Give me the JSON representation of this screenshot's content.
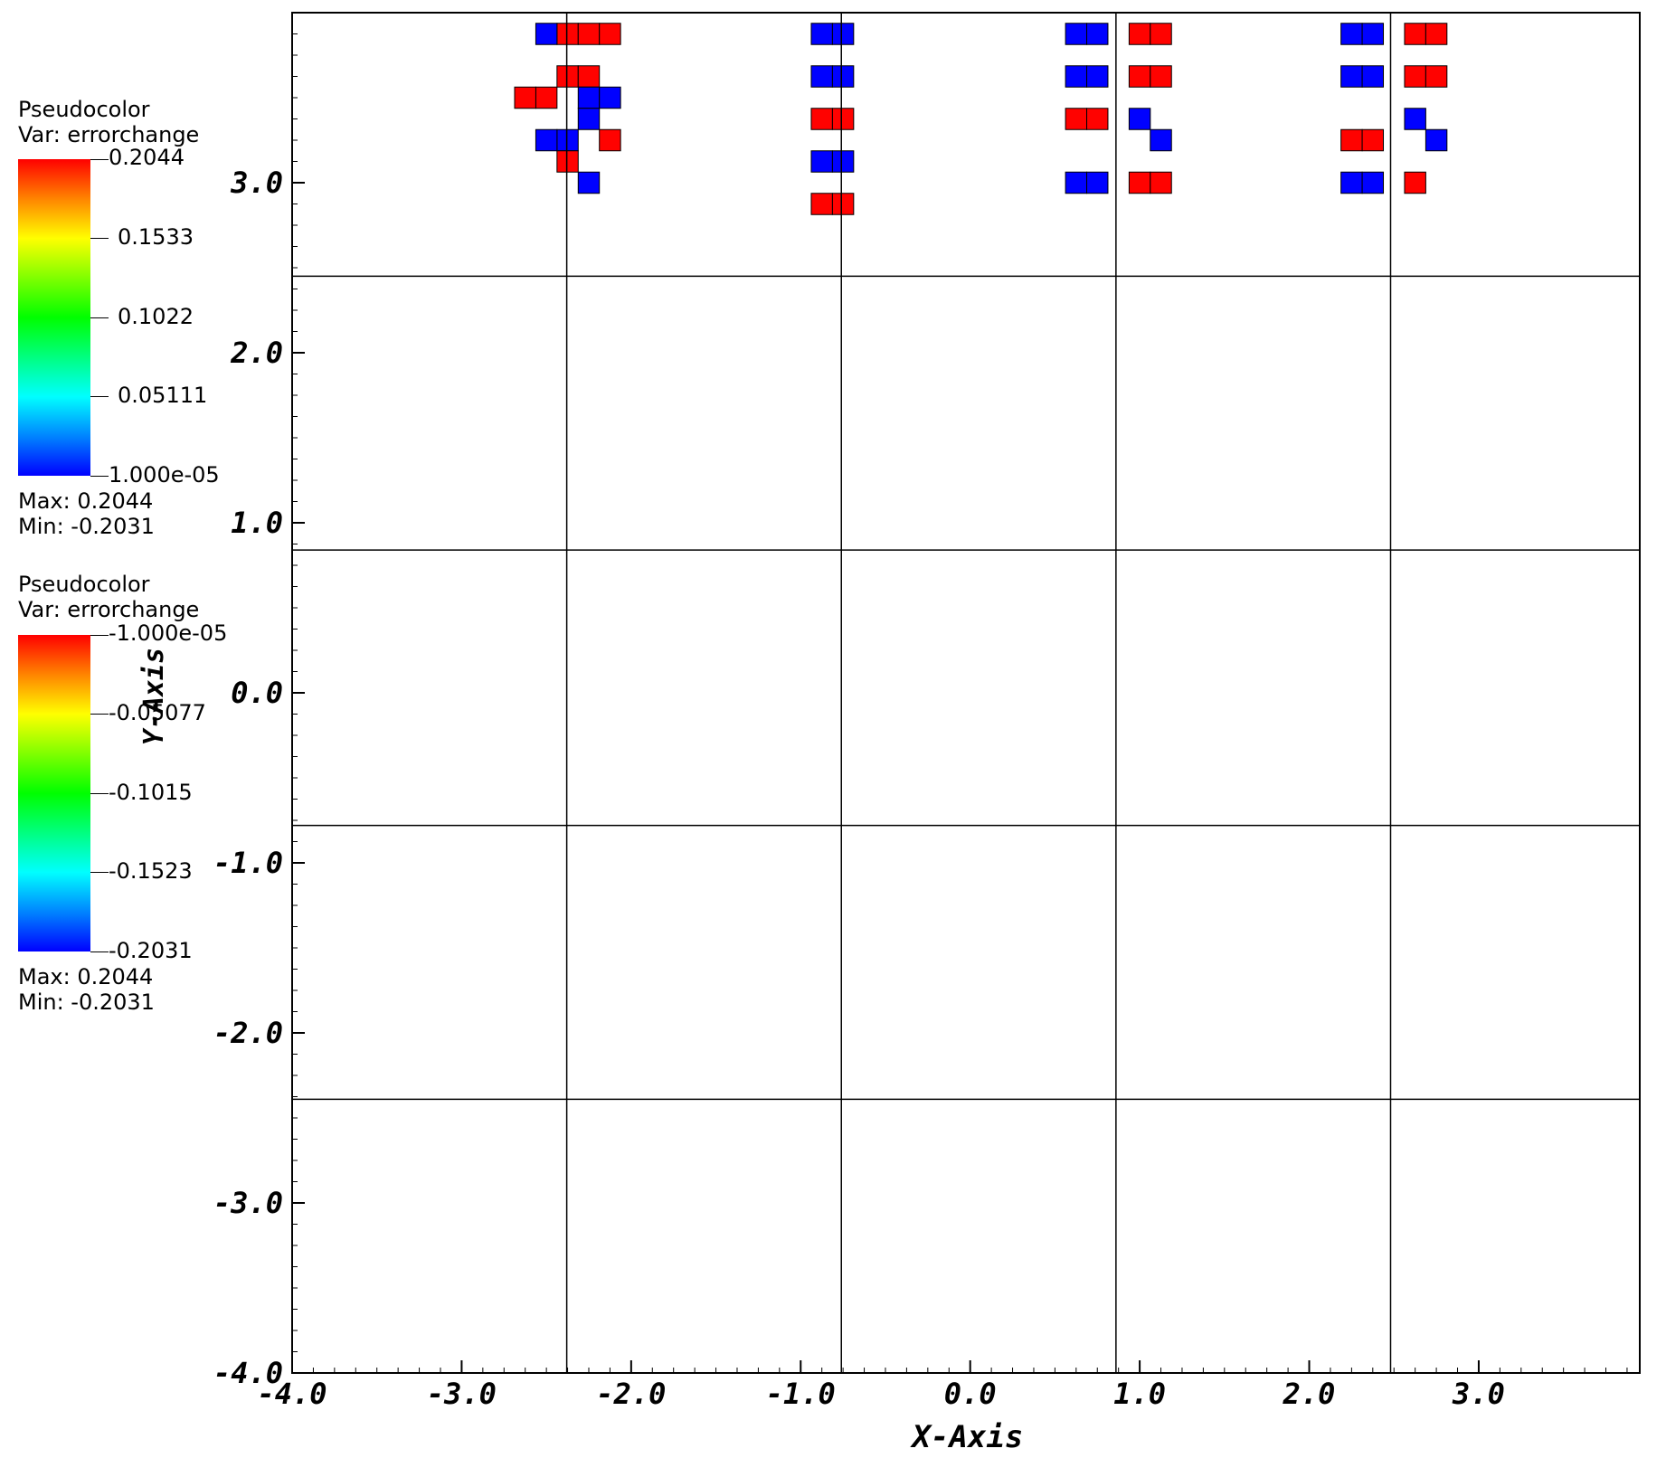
{
  "legends": [
    {
      "title": "Pseudocolor",
      "var_label": "Var: errorchange",
      "ticks": [
        "0.2044",
        "0.1533",
        "0.1022",
        "0.05111",
        "1.000e-05"
      ],
      "max_label": "Max:  0.2044",
      "min_label": "Min: -0.2031"
    },
    {
      "title": "Pseudocolor",
      "var_label": "Var: errorchange",
      "ticks": [
        "-1.000e-05",
        "-0.05077",
        "-0.1015",
        "-0.1523",
        "-0.2031"
      ],
      "max_label": "Max:  0.2044",
      "min_label": "Min: -0.2031"
    }
  ],
  "chart_data": {
    "type": "heatmap",
    "xlabel": "X-Axis",
    "ylabel": "Y-Axis",
    "xlim": [
      -4.0,
      3.95
    ],
    "ylim": [
      -4.0,
      4.0
    ],
    "x_ticks": [
      "-4.0",
      "-3.0",
      "-2.0",
      "-1.0",
      "0.0",
      "1.0",
      "2.0",
      "3.0"
    ],
    "y_ticks": [
      "-4.0",
      "-3.0",
      "-2.0",
      "-1.0",
      "0.0",
      "1.0",
      "2.0",
      "3.0"
    ],
    "x_tick_values": [
      -4,
      -3,
      -2,
      -1,
      0,
      1,
      2,
      3
    ],
    "y_tick_values": [
      -4,
      -3,
      -2,
      -1,
      0,
      1,
      2,
      3
    ],
    "patch_boundaries_x": [
      -2.38,
      -0.76,
      0.86,
      2.48
    ],
    "patch_boundaries_y": [
      2.45,
      0.84,
      -0.78,
      -2.39
    ],
    "colormap_positive": {
      "min": 1e-05,
      "max": 0.2044
    },
    "colormap_negative": {
      "min": -0.2031,
      "max": -1e-05
    },
    "cell_size": 0.125,
    "cells": [
      [
        -2.375,
        3.875,
        0.204
      ],
      [
        -2.25,
        3.875,
        0.204
      ],
      [
        -2.125,
        3.875,
        0.204
      ],
      [
        -2.5,
        3.875,
        -0.203
      ],
      [
        -2.375,
        3.625,
        0.204
      ],
      [
        -2.25,
        3.625,
        0.204
      ],
      [
        -2.5,
        3.5,
        0.204
      ],
      [
        -2.625,
        3.5,
        0.204
      ],
      [
        -2.25,
        3.5,
        -0.203
      ],
      [
        -2.125,
        3.5,
        -0.203
      ],
      [
        -2.375,
        3.25,
        -0.203
      ],
      [
        -2.25,
        3.375,
        -0.203
      ],
      [
        -2.125,
        3.25,
        0.204
      ],
      [
        -2.5,
        3.25,
        -0.203
      ],
      [
        -2.375,
        3.125,
        0.204
      ],
      [
        -2.25,
        3.0,
        -0.203
      ],
      [
        -0.875,
        3.875,
        -0.203
      ],
      [
        -0.75,
        3.875,
        -0.203
      ],
      [
        -0.875,
        3.625,
        -0.203
      ],
      [
        -0.75,
        3.625,
        -0.203
      ],
      [
        -0.875,
        3.375,
        0.204
      ],
      [
        -0.75,
        3.375,
        0.204
      ],
      [
        -0.875,
        3.125,
        -0.203
      ],
      [
        -0.75,
        3.125,
        -0.203
      ],
      [
        -0.875,
        2.875,
        0.204
      ],
      [
        -0.75,
        2.875,
        0.204
      ],
      [
        0.625,
        3.875,
        -0.203
      ],
      [
        0.75,
        3.875,
        -0.203
      ],
      [
        0.625,
        3.625,
        -0.203
      ],
      [
        0.75,
        3.625,
        -0.203
      ],
      [
        1.0,
        3.875,
        0.204
      ],
      [
        1.125,
        3.875,
        0.204
      ],
      [
        1.0,
        3.625,
        0.204
      ],
      [
        1.125,
        3.625,
        0.204
      ],
      [
        0.625,
        3.375,
        0.204
      ],
      [
        0.75,
        3.375,
        0.204
      ],
      [
        1.0,
        3.375,
        -0.203
      ],
      [
        1.125,
        3.25,
        -0.203
      ],
      [
        0.625,
        3.0,
        -0.203
      ],
      [
        0.75,
        3.0,
        -0.203
      ],
      [
        1.0,
        3.0,
        0.204
      ],
      [
        1.125,
        3.0,
        0.204
      ],
      [
        2.25,
        3.875,
        -0.203
      ],
      [
        2.375,
        3.875,
        -0.203
      ],
      [
        2.25,
        3.625,
        -0.203
      ],
      [
        2.375,
        3.625,
        -0.203
      ],
      [
        2.625,
        3.875,
        0.204
      ],
      [
        2.75,
        3.875,
        0.204
      ],
      [
        2.625,
        3.625,
        0.204
      ],
      [
        2.75,
        3.625,
        0.204
      ],
      [
        2.25,
        3.25,
        0.204
      ],
      [
        2.375,
        3.25,
        0.204
      ],
      [
        2.625,
        3.375,
        -0.203
      ],
      [
        2.75,
        3.25,
        -0.203
      ],
      [
        2.25,
        3.0,
        -0.203
      ],
      [
        2.375,
        3.0,
        -0.203
      ],
      [
        2.625,
        3.0,
        0.204
      ]
    ]
  }
}
